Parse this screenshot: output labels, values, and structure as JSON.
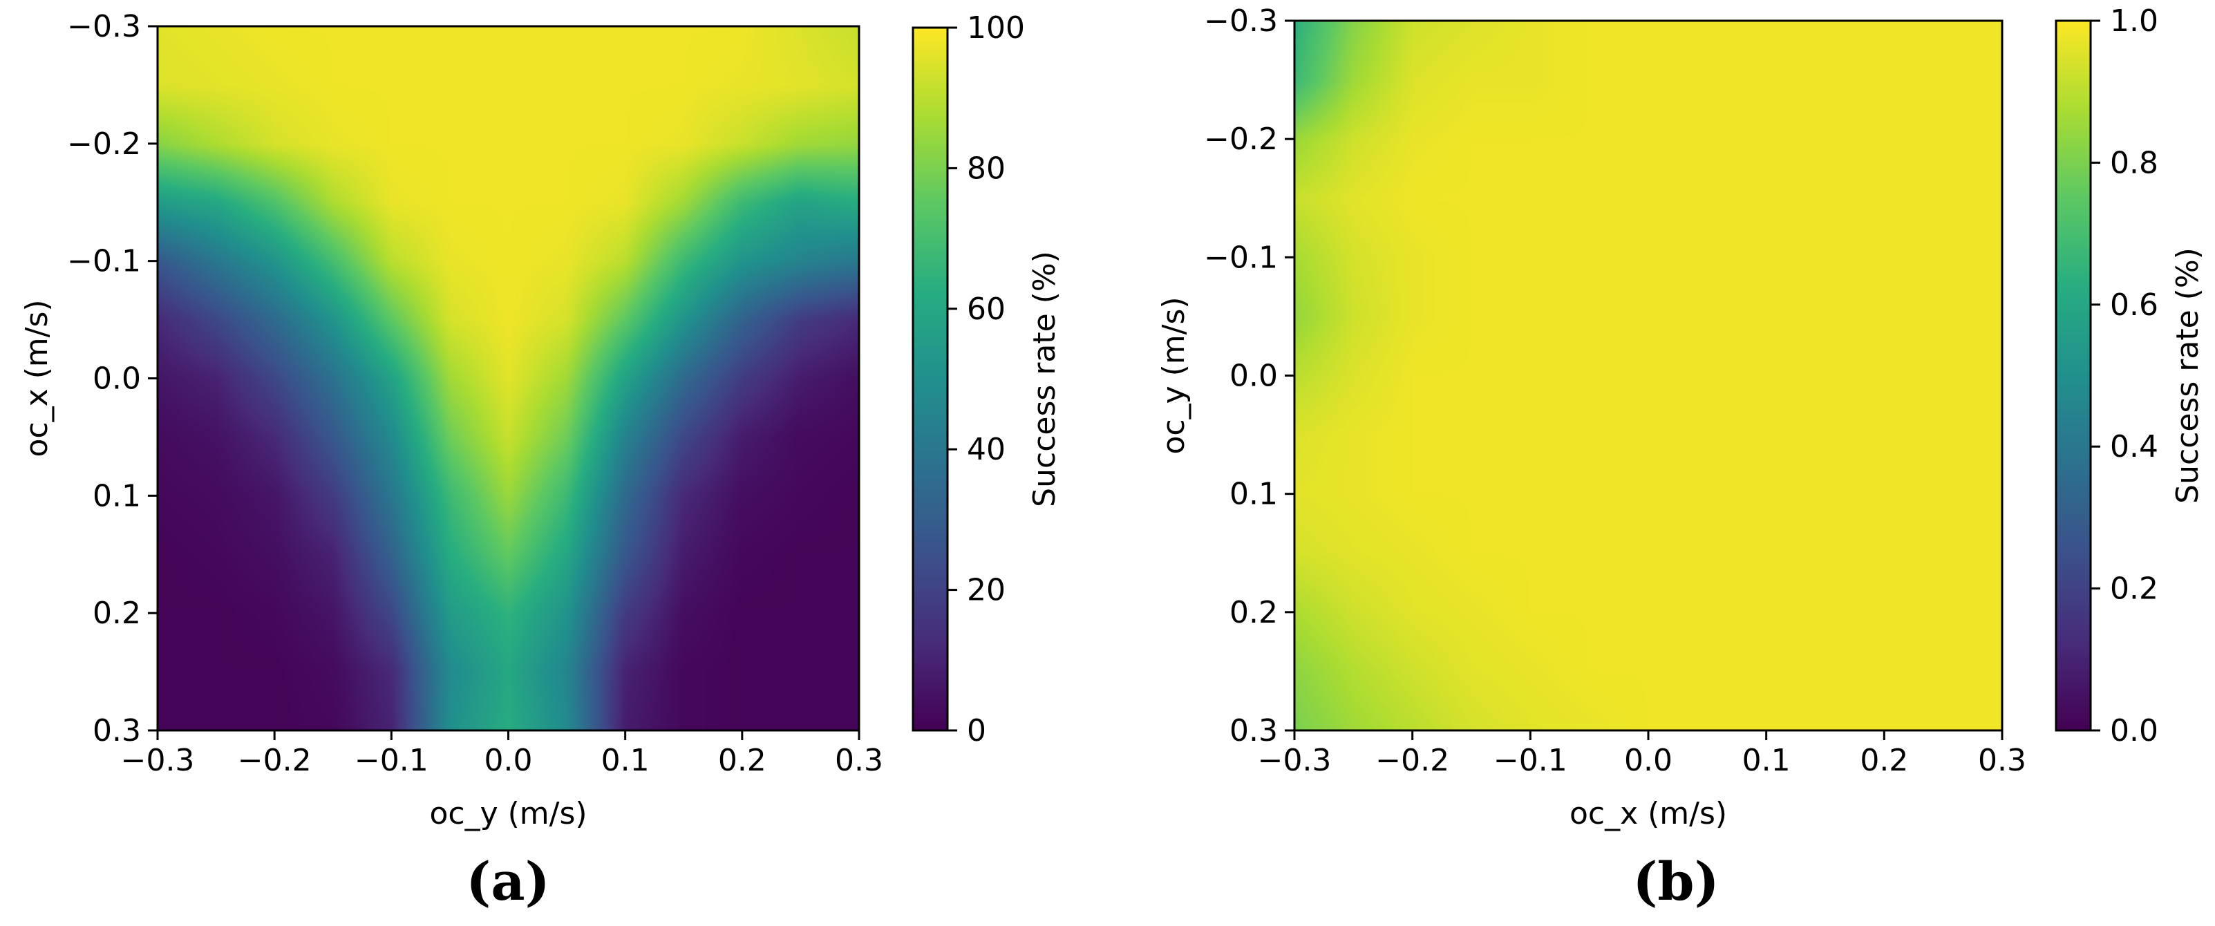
{
  "chart_data": [
    {
      "type": "heatmap",
      "panel_label": "(a)",
      "xlabel": "oc_y (m/s)",
      "ylabel": "oc_x (m/s)",
      "xlim": [
        -0.3,
        0.3
      ],
      "ylim": [
        0.3,
        -0.3
      ],
      "y_inverted": true,
      "x_ticks": [
        "−0.3",
        "−0.2",
        "−0.1",
        "0.0",
        "0.1",
        "0.2",
        "0.3"
      ],
      "y_ticks": [
        "−0.3",
        "−0.2",
        "−0.1",
        "0.0",
        "0.1",
        "0.2",
        "0.3"
      ],
      "colormap": "viridis",
      "colorbar": {
        "label": "Success rate (%)",
        "range": [
          0,
          100
        ],
        "ticks": [
          "0",
          "20",
          "40",
          "60",
          "80",
          "100"
        ]
      },
      "grid": false,
      "x": [
        -0.3,
        -0.25,
        -0.2,
        -0.15,
        -0.1,
        -0.05,
        0.0,
        0.05,
        0.1,
        0.15,
        0.2,
        0.25,
        0.3
      ],
      "y": [
        -0.3,
        -0.25,
        -0.2,
        -0.15,
        -0.1,
        -0.05,
        0.0,
        0.05,
        0.1,
        0.15,
        0.2,
        0.25,
        0.3
      ],
      "z": [
        [
          96,
          97,
          98,
          98,
          98,
          98,
          98,
          98,
          98,
          98,
          98,
          95,
          92
        ],
        [
          95,
          96,
          97,
          98,
          98,
          98,
          98,
          98,
          98,
          98,
          97,
          96,
          94
        ],
        [
          82,
          88,
          94,
          97,
          98,
          98,
          98,
          98,
          98,
          97,
          92,
          86,
          84
        ],
        [
          55,
          60,
          72,
          88,
          97,
          98,
          98,
          98,
          97,
          86,
          68,
          58,
          62
        ],
        [
          28,
          40,
          52,
          70,
          90,
          97,
          98,
          97,
          90,
          68,
          52,
          45,
          40
        ],
        [
          12,
          22,
          35,
          52,
          75,
          94,
          98,
          94,
          75,
          52,
          32,
          18,
          12
        ],
        [
          6,
          10,
          22,
          38,
          58,
          86,
          96,
          86,
          58,
          35,
          18,
          8,
          4
        ],
        [
          3,
          5,
          12,
          28,
          48,
          78,
          92,
          78,
          45,
          22,
          8,
          3,
          2
        ],
        [
          2,
          3,
          6,
          18,
          40,
          68,
          85,
          68,
          35,
          12,
          4,
          2,
          1
        ],
        [
          1,
          2,
          4,
          10,
          32,
          62,
          76,
          60,
          28,
          8,
          2,
          1,
          1
        ],
        [
          1,
          1,
          2,
          6,
          22,
          55,
          65,
          52,
          18,
          4,
          1,
          1,
          1
        ],
        [
          1,
          1,
          1,
          3,
          12,
          48,
          60,
          46,
          10,
          2,
          1,
          1,
          1
        ],
        [
          1,
          1,
          1,
          2,
          10,
          50,
          62,
          48,
          8,
          2,
          1,
          1,
          1
        ]
      ]
    },
    {
      "type": "heatmap",
      "panel_label": "(b)",
      "xlabel": "oc_x (m/s)",
      "ylabel": "oc_y (m/s)",
      "xlim": [
        -0.3,
        0.3
      ],
      "ylim": [
        0.3,
        -0.3
      ],
      "y_inverted": true,
      "x_ticks": [
        "−0.3",
        "−0.2",
        "−0.1",
        "0.0",
        "0.1",
        "0.2",
        "0.3"
      ],
      "y_ticks": [
        "−0.3",
        "−0.2",
        "−0.1",
        "0.0",
        "0.1",
        "0.2",
        "0.3"
      ],
      "colormap": "viridis",
      "colorbar": {
        "label": "Success rate (%)",
        "range": [
          0.0,
          1.0
        ],
        "ticks": [
          "0.0",
          "0.2",
          "0.4",
          "0.6",
          "0.8",
          "1.0"
        ]
      },
      "grid": false,
      "x": [
        -0.3,
        -0.25,
        -0.2,
        -0.15,
        -0.1,
        -0.05,
        0.0,
        0.05,
        0.1,
        0.15,
        0.2,
        0.25,
        0.3
      ],
      "y": [
        -0.3,
        -0.25,
        -0.2,
        -0.15,
        -0.1,
        -0.05,
        0.0,
        0.05,
        0.1,
        0.15,
        0.2,
        0.25,
        0.3
      ],
      "z": [
        [
          0.64,
          0.82,
          0.93,
          0.95,
          0.97,
          0.98,
          0.98,
          0.98,
          0.98,
          0.98,
          0.98,
          0.98,
          0.98
        ],
        [
          0.68,
          0.86,
          0.95,
          0.97,
          0.97,
          0.98,
          0.98,
          0.98,
          0.98,
          0.98,
          0.98,
          0.98,
          0.98
        ],
        [
          0.85,
          0.93,
          0.97,
          0.98,
          0.98,
          0.98,
          0.98,
          0.98,
          0.98,
          0.98,
          0.98,
          0.98,
          0.98
        ],
        [
          0.92,
          0.96,
          0.98,
          0.98,
          0.98,
          0.98,
          0.98,
          0.98,
          0.98,
          0.98,
          0.98,
          0.98,
          0.98
        ],
        [
          0.87,
          0.94,
          0.97,
          0.98,
          0.98,
          0.98,
          0.98,
          0.98,
          0.98,
          0.98,
          0.98,
          0.98,
          0.98
        ],
        [
          0.84,
          0.93,
          0.97,
          0.98,
          0.98,
          0.98,
          0.98,
          0.98,
          0.98,
          0.98,
          0.98,
          0.98,
          0.98
        ],
        [
          0.9,
          0.95,
          0.98,
          0.98,
          0.98,
          0.98,
          0.98,
          0.98,
          0.98,
          0.98,
          0.98,
          0.98,
          0.98
        ],
        [
          0.95,
          0.97,
          0.98,
          0.98,
          0.98,
          0.98,
          0.98,
          0.98,
          0.98,
          0.98,
          0.98,
          0.98,
          0.98
        ],
        [
          0.96,
          0.97,
          0.98,
          0.98,
          0.98,
          0.98,
          0.98,
          0.98,
          0.98,
          0.98,
          0.98,
          0.98,
          0.98
        ],
        [
          0.94,
          0.96,
          0.97,
          0.98,
          0.98,
          0.98,
          0.98,
          0.98,
          0.98,
          0.98,
          0.98,
          0.98,
          0.98
        ],
        [
          0.88,
          0.93,
          0.96,
          0.97,
          0.98,
          0.98,
          0.98,
          0.98,
          0.98,
          0.98,
          0.98,
          0.98,
          0.98
        ],
        [
          0.83,
          0.89,
          0.93,
          0.96,
          0.97,
          0.98,
          0.98,
          0.98,
          0.98,
          0.98,
          0.98,
          0.98,
          0.98
        ],
        [
          0.8,
          0.86,
          0.9,
          0.94,
          0.96,
          0.97,
          0.98,
          0.98,
          0.98,
          0.98,
          0.98,
          0.98,
          0.98
        ]
      ]
    }
  ]
}
